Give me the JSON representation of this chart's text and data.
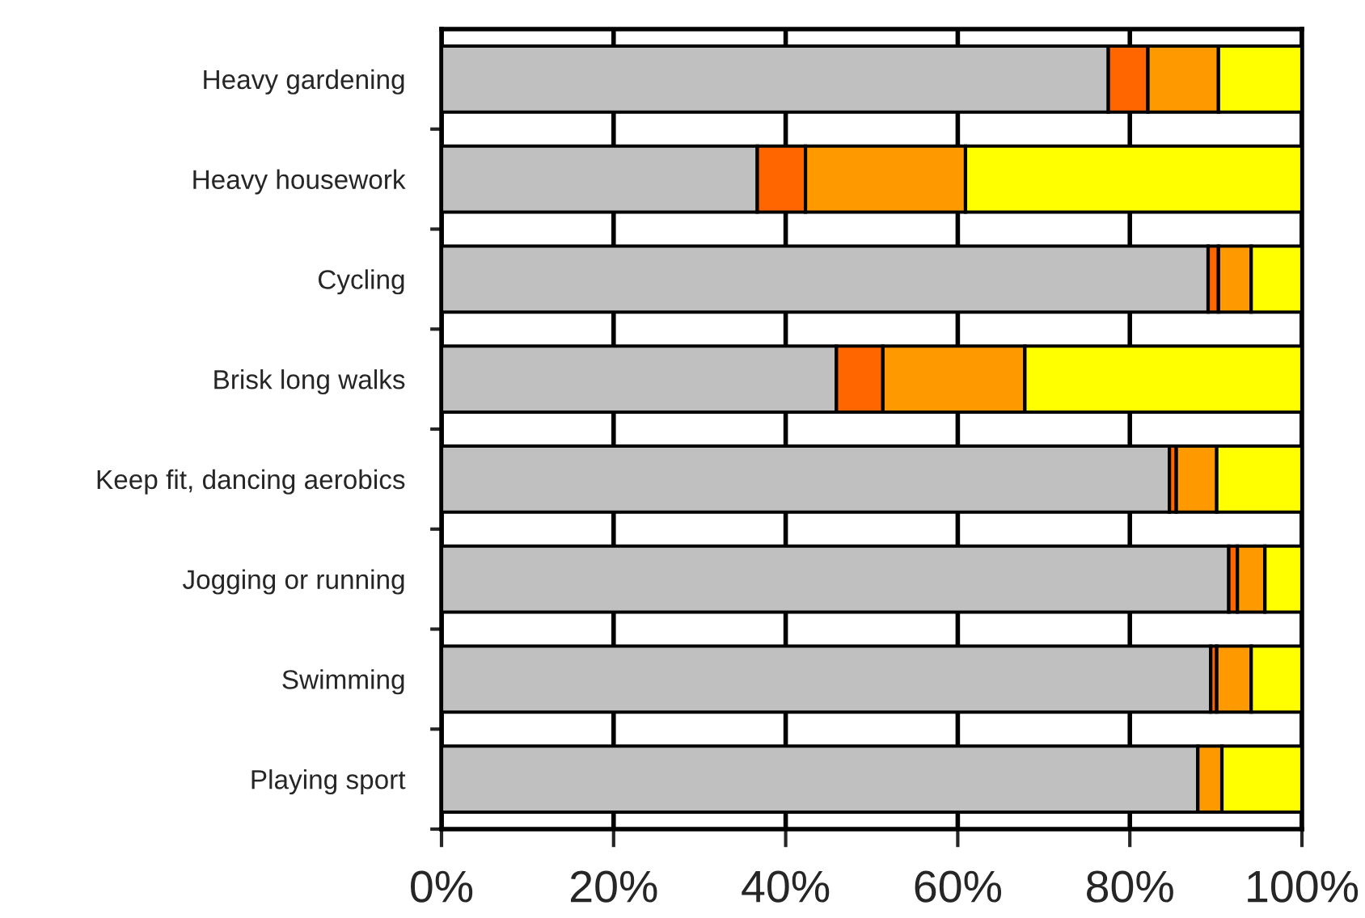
{
  "chart_data": {
    "type": "bar",
    "orientation": "horizontal",
    "stacked": true,
    "categories": [
      "Heavy gardening",
      "Heavy housework",
      "Cycling",
      "Brisk long walks",
      "Keep fit, dancing aerobics",
      "Jogging or running",
      "Swimming",
      "Playing sport"
    ],
    "series": [
      {
        "color": "#c0c0c0",
        "values": [
          77.5,
          36.7,
          89.1,
          45.9,
          84.6,
          91.5,
          89.4,
          87.9
        ]
      },
      {
        "color": "#ff6600",
        "values": [
          4.6,
          5.6,
          1.2,
          5.4,
          0.8,
          1.0,
          0.7,
          null
        ]
      },
      {
        "color": "#ff9900",
        "values": [
          8.2,
          18.6,
          3.8,
          16.5,
          4.7,
          3.2,
          4.0,
          2.8
        ]
      },
      {
        "color": "#ffff00",
        "values": [
          9.7,
          39.1,
          5.9,
          32.2,
          9.9,
          4.3,
          5.9,
          9.3
        ]
      }
    ],
    "xlim": [
      0,
      100
    ],
    "xticks": [
      {
        "value": 0,
        "label": "0%"
      },
      {
        "value": 20,
        "label": "20%"
      },
      {
        "value": 40,
        "label": "40%"
      },
      {
        "value": 60,
        "label": "60%"
      },
      {
        "value": 80,
        "label": "80%"
      },
      {
        "value": 100,
        "label": "100%"
      }
    ],
    "grid": "x"
  }
}
